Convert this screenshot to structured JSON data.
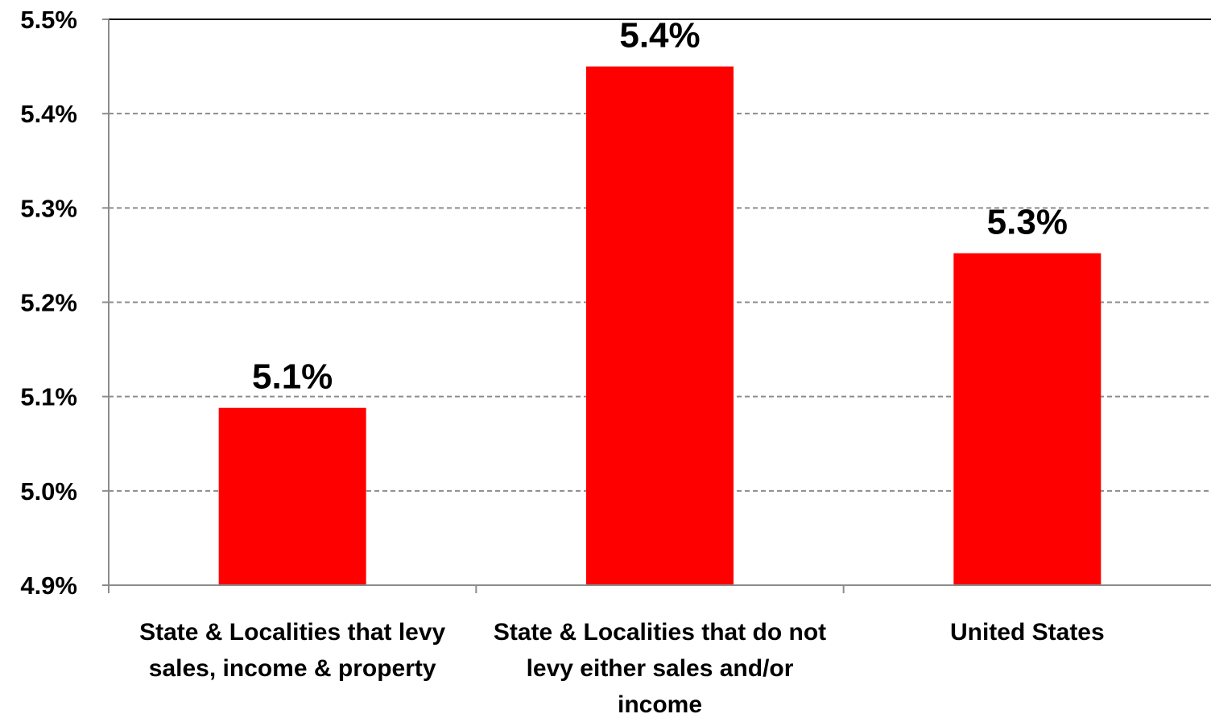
{
  "chart_data": {
    "type": "bar",
    "categories": [
      [
        "State & Localities  that levy",
        "sales, income & property"
      ],
      [
        "State & Localities  that do not",
        "levy either sales and/or",
        "income"
      ],
      [
        "United States"
      ]
    ],
    "values": [
      5.088,
      5.45,
      5.252
    ],
    "data_labels": [
      "5.1%",
      "5.4%",
      "5.3%"
    ],
    "ylim": [
      4.9,
      5.5
    ],
    "yticks": [
      4.9,
      5.0,
      5.1,
      5.2,
      5.3,
      5.4,
      5.5
    ],
    "ytick_labels": [
      "4.9%",
      "5.0%",
      "5.1%",
      "5.2%",
      "5.3%",
      "5.4%",
      "5.5%"
    ],
    "bar_color": "#ff0000",
    "grid": true,
    "legend": "none"
  }
}
